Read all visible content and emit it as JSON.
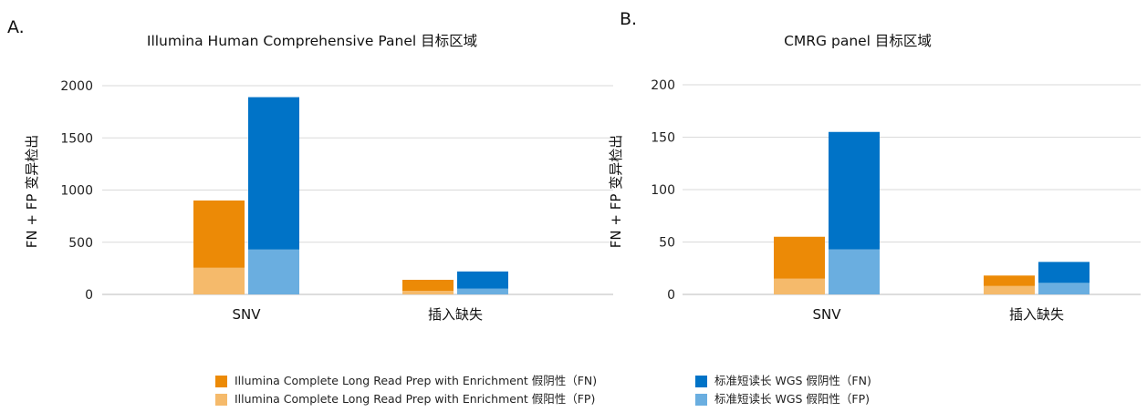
{
  "colors": {
    "wgs_fn": "#0073C7",
    "wgs_fp": "#6AAEE0",
    "cl_fn": "#EC8A06",
    "cl_fp": "#F5BA6B",
    "grid": "#DADADA",
    "axis": "#BBBBBB"
  },
  "chart_data": [
    {
      "panel_label": "A.",
      "type": "bar",
      "title": "Illumina Human Comprehensive Panel 目标区域",
      "ylabel": "FN + FP 变异检出",
      "xlabel": "",
      "categories": [
        "SNV",
        "插入缺失"
      ],
      "ylim": [
        0,
        2000
      ],
      "yticks": [
        "0",
        "500",
        "1000",
        "1500",
        "2000"
      ],
      "ytick_values": [
        0,
        500,
        1000,
        1500,
        2000
      ],
      "grid": true,
      "stacked": true,
      "groups": [
        {
          "series_fp": "Illumina Complete Long Read Prep with Enrichment 假阳性（FP)",
          "series_fn": "Illumina Complete Long Read Prep with Enrichment 假阴性（FN)",
          "fp_values": [
            255,
            35
          ],
          "fn_values": [
            645,
            105
          ]
        },
        {
          "series_fp": "标准短读长 WGS 假阳性（FP)",
          "series_fn": "标准短读长 WGS 假阴性（FN)",
          "fp_values": [
            430,
            55
          ],
          "fn_values": [
            1460,
            165
          ]
        }
      ]
    },
    {
      "panel_label": "B.",
      "type": "bar",
      "title": "CMRG panel 目标区域",
      "ylabel": "FN + FP 变异检出",
      "xlabel": "",
      "categories": [
        "SNV",
        "插入缺失"
      ],
      "ylim": [
        0,
        200
      ],
      "yticks": [
        "0",
        "50",
        "100",
        "150",
        "200"
      ],
      "ytick_values": [
        0,
        50,
        100,
        150,
        200
      ],
      "grid": true,
      "stacked": true,
      "groups": [
        {
          "series_fp": "Illumina Complete Long Read Prep with Enrichment 假阳性（FP)",
          "series_fn": "Illumina Complete Long Read Prep with Enrichment 假阴性（FN)",
          "fp_values": [
            15,
            8
          ],
          "fn_values": [
            40,
            10
          ]
        },
        {
          "series_fp": "标准短读长 WGS 假阳性（FP)",
          "series_fn": "标准短读长 WGS 假阴性（FN)",
          "fp_values": [
            43,
            11
          ],
          "fn_values": [
            112,
            20
          ]
        }
      ]
    }
  ],
  "legend": {
    "left": [
      {
        "label": "Illumina Complete Long Read Prep with Enrichment 假阴性（FN)",
        "color": "#EC8A06"
      },
      {
        "label": "Illumina Complete Long Read Prep with Enrichment 假阳性（FP)",
        "color": "#F5BA6B"
      }
    ],
    "right": [
      {
        "label": "标准短读长 WGS 假阴性（FN)",
        "color": "#0073C7"
      },
      {
        "label": "标准短读长 WGS 假阳性（FP)",
        "color": "#6AAEE0"
      }
    ]
  }
}
